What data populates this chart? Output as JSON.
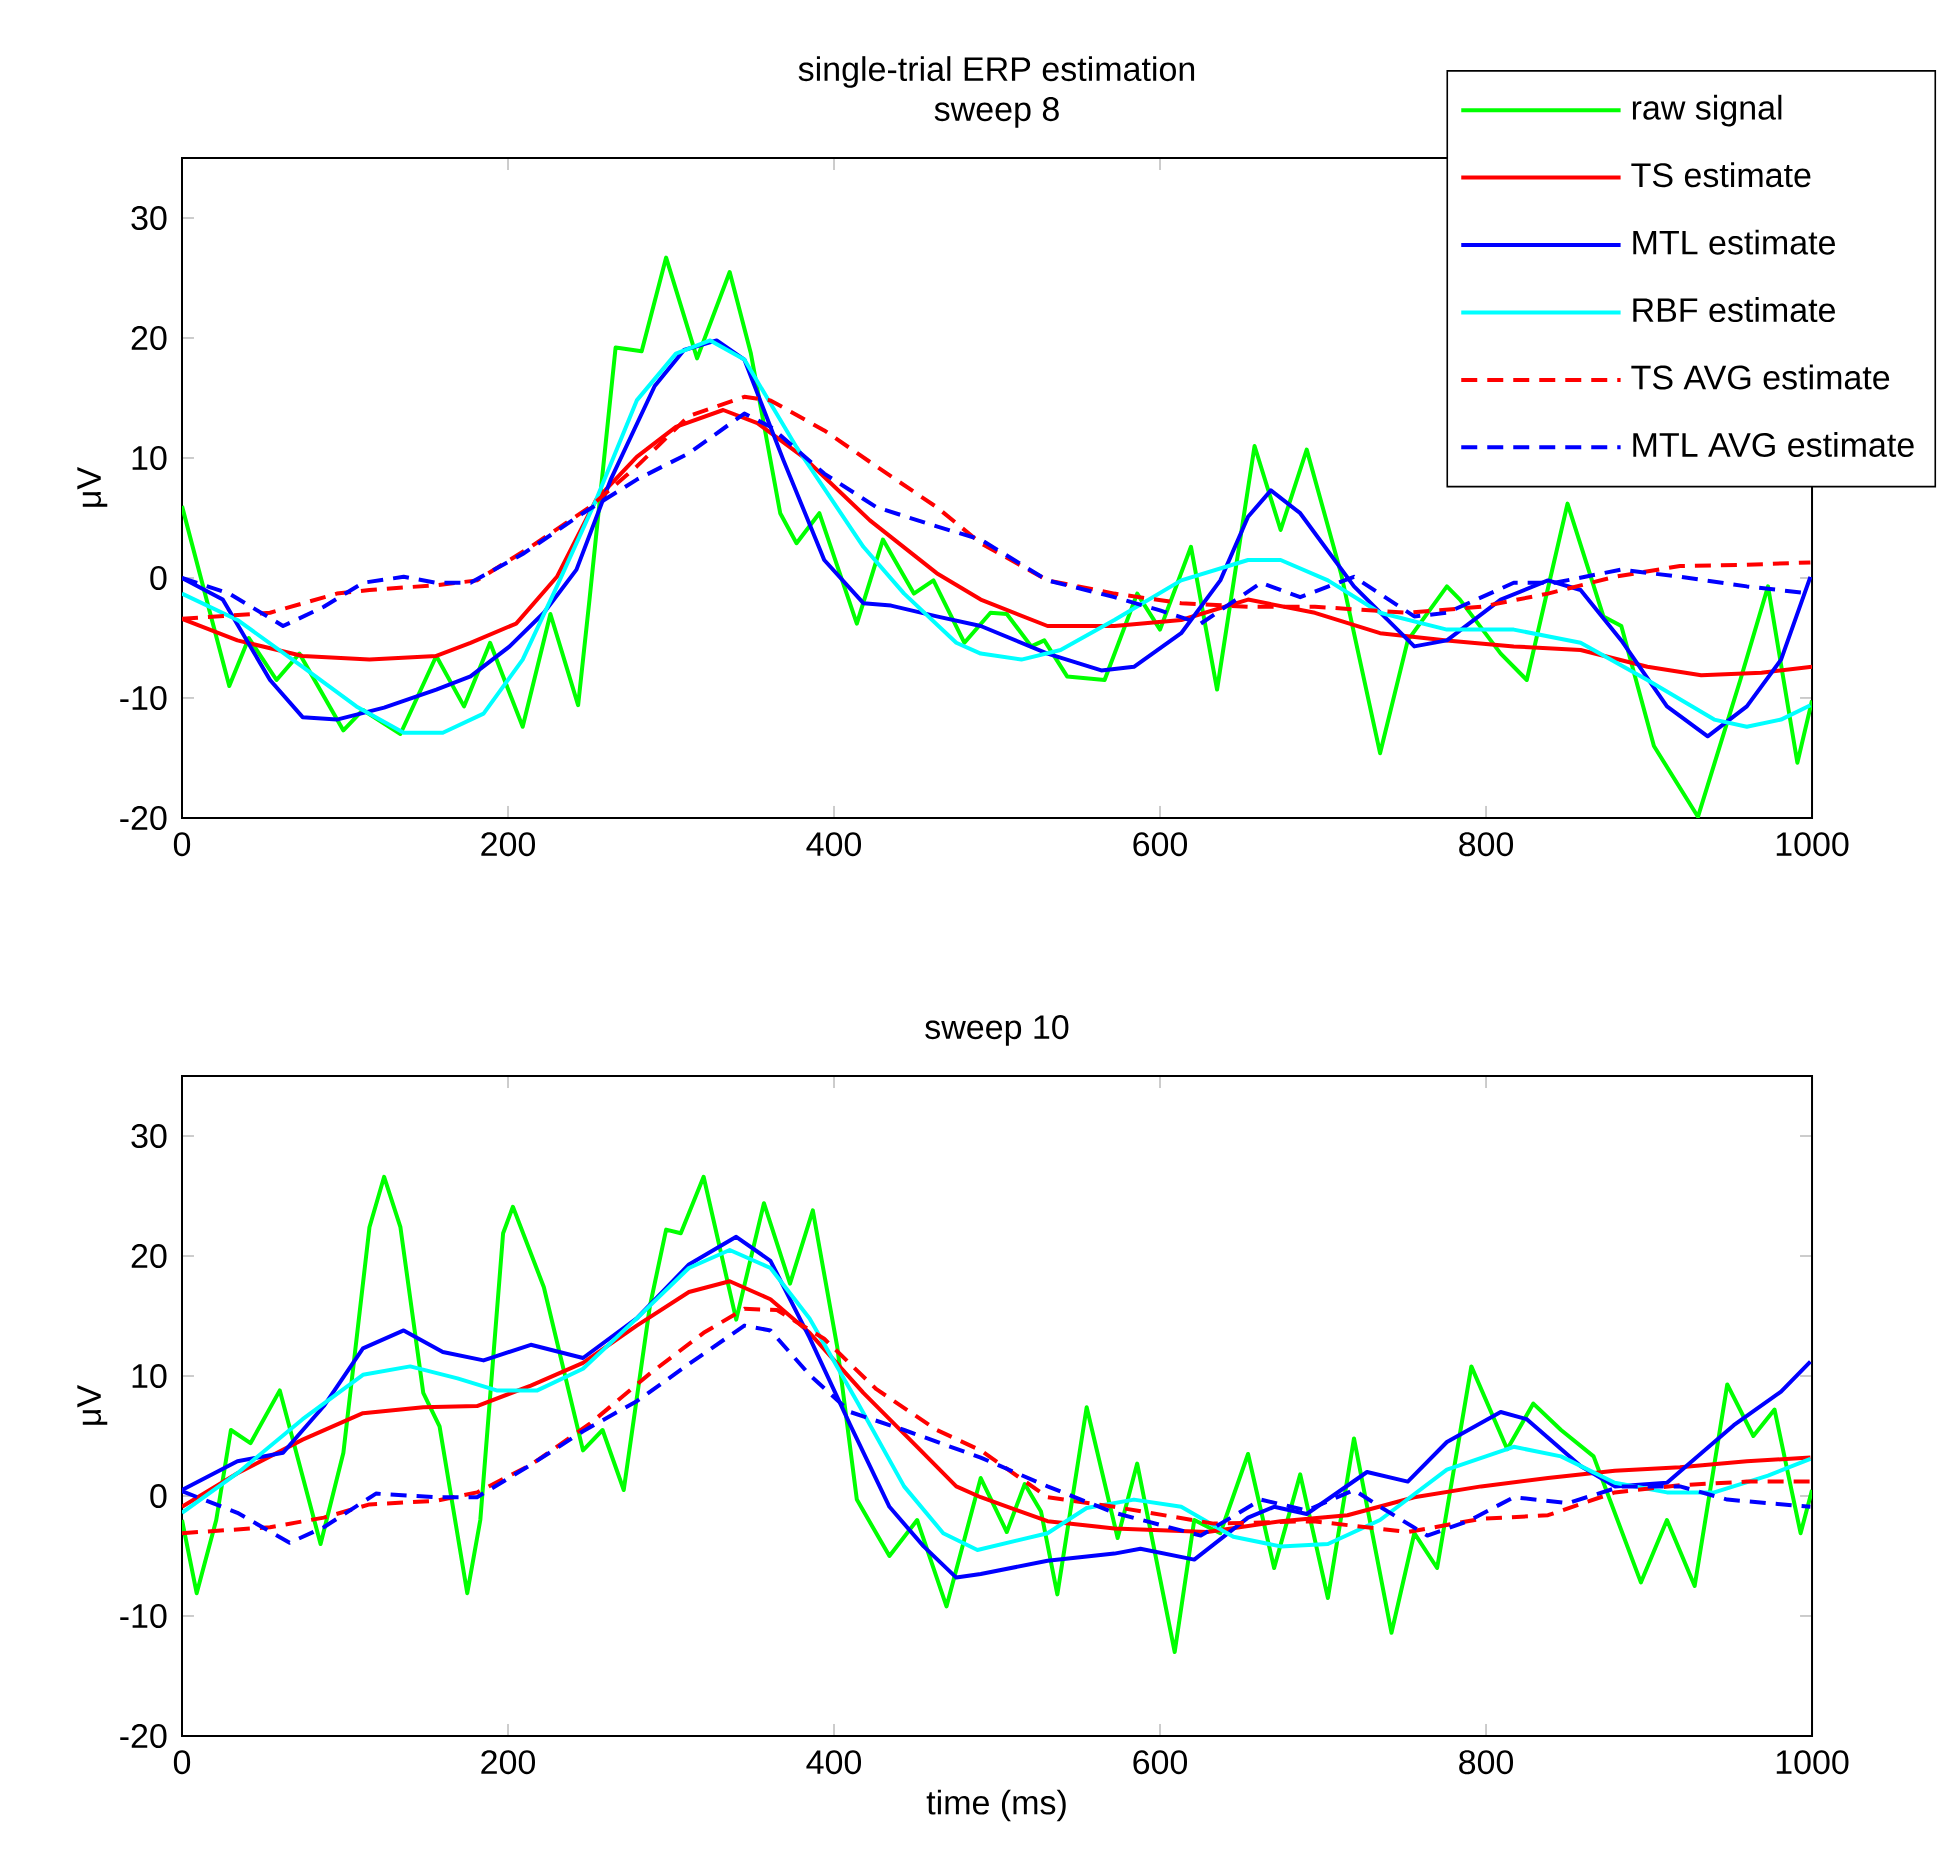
{
  "chart_data": [
    {
      "type": "line",
      "title": "single-trial ERP estimation",
      "subtitle": "sweep 8",
      "ylabel": "μV",
      "xlim": [
        0,
        1000
      ],
      "ylim": [
        -20,
        35
      ],
      "xticks": [
        0,
        200,
        400,
        600,
        800,
        1000
      ],
      "yticks": [
        -20,
        -10,
        0,
        10,
        20,
        30
      ],
      "legend": "top right",
      "marker": "none",
      "series": [
        {
          "name": "raw signal",
          "color": "#00ff00",
          "line_style": "solid",
          "x": [
            0,
            29,
            41,
            58,
            72,
            99,
            111,
            134,
            156,
            173,
            189,
            209,
            226,
            243,
            250,
            266,
            282,
            297,
            316,
            336,
            349,
            367,
            377,
            391,
            414,
            430,
            449,
            461,
            480,
            496,
            506,
            521,
            529,
            543,
            566,
            586,
            600,
            619,
            635,
            658,
            674,
            690,
            711,
            735,
            752,
            776,
            784,
            809,
            825,
            850,
            872,
            883,
            903,
            930,
            956,
            973,
            991,
            1000
          ],
          "values": [
            6,
            -9,
            -5,
            -8.5,
            -6.3,
            -12.7,
            -11,
            -13,
            -6.5,
            -10.7,
            -5.4,
            -12.4,
            -3,
            -10.6,
            -1.8,
            19.2,
            18.9,
            26.7,
            18.3,
            25.5,
            18.7,
            5.4,
            2.9,
            5.4,
            -3.8,
            3.2,
            -1.3,
            -0.2,
            -5.4,
            -2.9,
            -3,
            -5.7,
            -5.2,
            -8.2,
            -8.5,
            -1.3,
            -4.3,
            2.6,
            -9.3,
            11,
            4,
            10.7,
            0.4,
            -14.6,
            -5.2,
            -0.7,
            -1.8,
            -6.3,
            -8.5,
            6.2,
            -3.2,
            -4,
            -14,
            -19.9,
            -8.5,
            -0.7,
            -15.4,
            -10.2
          ]
        },
        {
          "name": "TS estimate",
          "color": "#ff0000",
          "line_style": "solid",
          "x": [
            0,
            34,
            74,
            115,
            156,
            177,
            205,
            230,
            254,
            279,
            303,
            332,
            353,
            381,
            422,
            463,
            490,
            531,
            572,
            613,
            654,
            695,
            735,
            776,
            817,
            858,
            899,
            932,
            969,
            1000
          ],
          "values": [
            -3.4,
            -5.2,
            -6.5,
            -6.8,
            -6.5,
            -5.4,
            -3.8,
            0.1,
            6.5,
            10.1,
            12.6,
            14,
            12.9,
            10.1,
            4.8,
            0.4,
            -1.8,
            -4,
            -4,
            -3.5,
            -1.8,
            -2.9,
            -4.6,
            -5.2,
            -5.7,
            -6,
            -7.4,
            -8.1,
            -7.9,
            -7.4
          ]
        },
        {
          "name": "MTL estimate",
          "color": "#0000ff",
          "line_style": "solid",
          "x": [
            0,
            25,
            54,
            74,
            95,
            124,
            156,
            177,
            201,
            222,
            242,
            263,
            290,
            308,
            328,
            345,
            369,
            394,
            418,
            435,
            463,
            490,
            531,
            564,
            584,
            613,
            637,
            654,
            668,
            686,
            719,
            756,
            776,
            809,
            838,
            858,
            883,
            911,
            936,
            960,
            981,
            999
          ],
          "values": [
            0,
            -1.8,
            -8.5,
            -11.6,
            -11.8,
            -10.8,
            -9.3,
            -8.2,
            -5.7,
            -2.9,
            0.7,
            8.2,
            16,
            19,
            19.8,
            18.2,
            9.8,
            1.5,
            -2.1,
            -2.3,
            -3.2,
            -4,
            -6.3,
            -7.7,
            -7.4,
            -4.6,
            -0.2,
            5.1,
            7.3,
            5.4,
            -0.7,
            -5.7,
            -5.2,
            -1.8,
            -0.2,
            -1,
            -5.2,
            -10.7,
            -13.2,
            -10.7,
            -6.8,
            0.1
          ]
        },
        {
          "name": "RBF estimate",
          "color": "#00ffff",
          "line_style": "solid",
          "x": [
            0,
            34,
            74,
            107,
            136,
            160,
            185,
            209,
            230,
            254,
            279,
            303,
            324,
            345,
            377,
            418,
            443,
            475,
            490,
            515,
            539,
            572,
            613,
            654,
            674,
            703,
            735,
            776,
            817,
            858,
            899,
            940,
            960,
            981,
            999
          ],
          "values": [
            -1.3,
            -3.5,
            -7.4,
            -10.7,
            -12.9,
            -12.9,
            -11.3,
            -6.8,
            -0.7,
            6.5,
            14.8,
            18.7,
            19.8,
            18.2,
            10.9,
            2.6,
            -1.3,
            -5.4,
            -6.3,
            -6.8,
            -6,
            -3.5,
            -0.2,
            1.5,
            1.5,
            -0.2,
            -2.9,
            -4.3,
            -4.3,
            -5.4,
            -8.5,
            -11.8,
            -12.4,
            -11.8,
            -10.6
          ]
        },
        {
          "name": "TS AVG estimate",
          "color": "#ff0000",
          "line_style": "dashed",
          "x": [
            0,
            54,
            95,
            115,
            156,
            181,
            214,
            250,
            279,
            311,
            345,
            361,
            394,
            426,
            463,
            490,
            531,
            572,
            613,
            654,
            695,
            752,
            797,
            838,
            879,
            919,
            960,
            999
          ],
          "values": [
            -3.4,
            -2.9,
            -1.3,
            -1,
            -0.6,
            -0.2,
            2.6,
            5.9,
            9.3,
            13.5,
            15.1,
            14.8,
            12.3,
            9.3,
            5.9,
            2.9,
            -0.2,
            -1.3,
            -2.1,
            -2.4,
            -2.4,
            -2.9,
            -2.4,
            -1.3,
            0.1,
            1,
            1.1,
            1.3
          ]
        },
        {
          "name": "MTL AVG estimate",
          "color": "#0000ff",
          "line_style": "dashed",
          "x": [
            0,
            29,
            62,
            87,
            111,
            136,
            156,
            177,
            209,
            246,
            279,
            311,
            345,
            361,
            394,
            426,
            463,
            490,
            531,
            572,
            600,
            625,
            662,
            686,
            719,
            756,
            776,
            817,
            842,
            883,
            919,
            960,
            999
          ],
          "values": [
            0,
            -1.3,
            -4,
            -2.4,
            -0.4,
            0.1,
            -0.4,
            -0.4,
            2,
            5.4,
            8.2,
            10.4,
            13.7,
            12.6,
            8.7,
            5.9,
            4.3,
            3.2,
            -0.2,
            -1.6,
            -2.7,
            -3.8,
            -0.4,
            -1.6,
            0.1,
            -3.2,
            -2.9,
            -0.4,
            -0.4,
            0.7,
            0.1,
            -0.7,
            -1.3
          ]
        }
      ]
    },
    {
      "type": "line",
      "title": "sweep 10",
      "xlabel": "time (ms)",
      "ylabel": "μV",
      "xlim": [
        0,
        1000
      ],
      "ylim": [
        -20,
        35
      ],
      "xticks": [
        0,
        200,
        400,
        600,
        800,
        1000
      ],
      "yticks": [
        -20,
        -10,
        0,
        10,
        20,
        30
      ],
      "marker": "none",
      "series": [
        {
          "color": "#00ff00",
          "line_style": "solid",
          "x": [
            0,
            9,
            21,
            30,
            42,
            60,
            85,
            99,
            115,
            124,
            134,
            148,
            158,
            175,
            183,
            197,
            203,
            222,
            246,
            258,
            271,
            287,
            297,
            306,
            320,
            340,
            357,
            373,
            387,
            402,
            414,
            434,
            451,
            469,
            490,
            506,
            517,
            527,
            537,
            555,
            574,
            586,
            609,
            621,
            637,
            654,
            670,
            686,
            703,
            719,
            742,
            756,
            770,
            791,
            813,
            829,
            846,
            866,
            895,
            911,
            928,
            948,
            964,
            977,
            993,
            1000
          ],
          "values": [
            -2,
            -8.1,
            -2,
            5.5,
            4.4,
            8.8,
            -4,
            3.6,
            22.4,
            26.6,
            22.4,
            8.6,
            5.8,
            -8.1,
            -2,
            21.9,
            24.1,
            17.4,
            3.8,
            5.5,
            0.5,
            15.8,
            22.2,
            21.9,
            26.6,
            14.7,
            24.4,
            17.7,
            23.8,
            12.4,
            -0.3,
            -5,
            -2,
            -9.2,
            1.5,
            -3,
            1,
            -1.3,
            -8.2,
            7.4,
            -3.5,
            2.7,
            -13,
            -2,
            -3.1,
            3.5,
            -6,
            1.8,
            -8.5,
            4.8,
            -11.4,
            -3.1,
            -6,
            10.8,
            3.9,
            7.7,
            5.5,
            3.3,
            -7.2,
            -2,
            -7.5,
            9.3,
            5,
            7.2,
            -3.1,
            0.5
          ]
        },
        {
          "color": "#ff0000",
          "line_style": "solid",
          "x": [
            0,
            34,
            74,
            111,
            148,
            181,
            214,
            246,
            279,
            311,
            336,
            361,
            385,
            418,
            451,
            475,
            490,
            531,
            572,
            629,
            674,
            715,
            756,
            797,
            838,
            879,
            919,
            960,
            999
          ],
          "values": [
            -0.9,
            1.9,
            4.7,
            6.9,
            7.4,
            7.5,
            9.2,
            11.1,
            14.2,
            17,
            17.9,
            16.4,
            13.6,
            8.6,
            4.1,
            0.8,
            -0.1,
            -2.1,
            -2.7,
            -3,
            -2.1,
            -1.6,
            -0.1,
            0.8,
            1.5,
            2.1,
            2.4,
            2.9,
            3.2
          ]
        },
        {
          "color": "#0000ff",
          "line_style": "solid",
          "x": [
            0,
            34,
            62,
            87,
            111,
            136,
            160,
            185,
            214,
            246,
            279,
            311,
            340,
            361,
            385,
            410,
            434,
            455,
            475,
            490,
            531,
            572,
            588,
            621,
            654,
            670,
            690,
            727,
            752,
            776,
            809,
            825,
            858,
            879,
            911,
            952,
            981,
            999
          ],
          "values": [
            0.5,
            2.9,
            3.6,
            7.5,
            12.3,
            13.8,
            12,
            11.3,
            12.6,
            11.5,
            14.8,
            19.3,
            21.6,
            19.6,
            13.2,
            5.9,
            -0.9,
            -4.2,
            -6.8,
            -6.5,
            -5.4,
            -4.8,
            -4.4,
            -5.3,
            -1.8,
            -0.9,
            -1.5,
            2,
            1.2,
            4.5,
            7,
            6.4,
            2.5,
            0.8,
            1.1,
            5.9,
            8.7,
            11.2
          ]
        },
        {
          "color": "#00ffff",
          "line_style": "solid",
          "x": [
            0,
            34,
            74,
            111,
            140,
            169,
            193,
            218,
            246,
            279,
            311,
            336,
            361,
            385,
            414,
            443,
            467,
            488,
            531,
            555,
            584,
            613,
            645,
            674,
            703,
            735,
            776,
            817,
            846,
            879,
            911,
            940,
            973,
            999
          ],
          "values": [
            -1.4,
            1.9,
            6.4,
            10.1,
            10.8,
            9.8,
            8.8,
            8.8,
            10.6,
            14.8,
            19,
            20.5,
            19,
            14.8,
            7.9,
            0.8,
            -3.1,
            -4.5,
            -3.1,
            -1,
            -0.3,
            -0.9,
            -3.4,
            -4.2,
            -4,
            -2,
            2.2,
            4.1,
            3.3,
            1.1,
            0.3,
            0.3,
            1.7,
            3.1
          ]
        },
        {
          "color": "#ff0000",
          "line_style": "dashed",
          "x": [
            0,
            54,
            87,
            115,
            156,
            181,
            214,
            250,
            287,
            320,
            345,
            365,
            394,
            426,
            463,
            490,
            531,
            572,
            633,
            694,
            752,
            797,
            838,
            879,
            919,
            960,
            999
          ],
          "values": [
            -3.1,
            -2.6,
            -1.8,
            -0.7,
            -0.4,
            0.3,
            2.6,
            6,
            10.2,
            13.6,
            15.6,
            15.5,
            13.1,
            8.9,
            5.5,
            3.8,
            -0.1,
            -0.9,
            -2.3,
            -2.1,
            -3,
            -1.9,
            -1.6,
            0.3,
            0.9,
            1.2,
            1.2
          ]
        },
        {
          "color": "#0000ff",
          "line_style": "dashed",
          "x": [
            0,
            34,
            66,
            87,
            119,
            156,
            181,
            214,
            246,
            279,
            311,
            345,
            361,
            385,
            410,
            443,
            490,
            531,
            572,
            625,
            662,
            690,
            719,
            735,
            764,
            789,
            817,
            850,
            883,
            919,
            948,
            999
          ],
          "values": [
            0.4,
            -1.4,
            -3.9,
            -2.6,
            0.2,
            -0.1,
            -0.1,
            2.6,
            5.4,
            7.9,
            11,
            14.2,
            13.8,
            10.1,
            7,
            5.5,
            3.2,
            0.8,
            -1.4,
            -3.3,
            -0.3,
            -1.2,
            0.5,
            -0.9,
            -3.3,
            -2.1,
            -0.1,
            -0.6,
            0.8,
            0.8,
            -0.3,
            -0.9
          ]
        }
      ]
    }
  ]
}
